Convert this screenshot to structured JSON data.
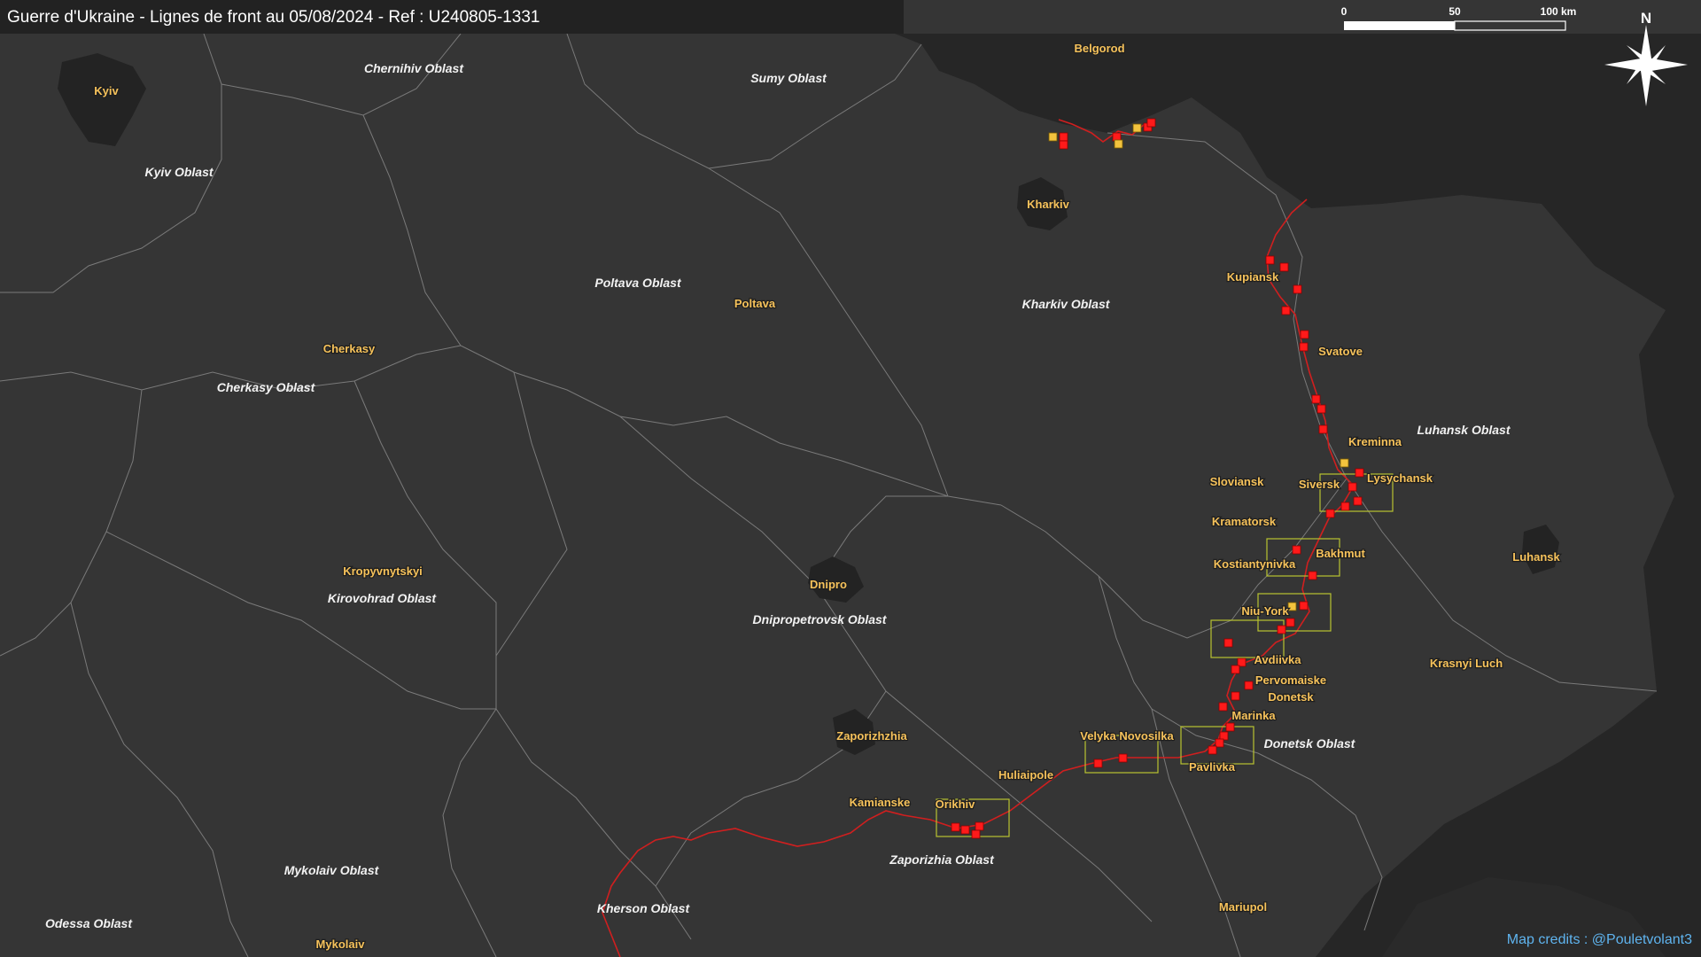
{
  "header": {
    "title": "Guerre d'Ukraine - Lignes de front au 05/08/2024 - Ref : U240805-1331"
  },
  "credits": "Map credits : @Pouletvolant3",
  "colors": {
    "ukraine_land": "#353535",
    "russia_land": "#262626",
    "oblast_border": "#7a7a7a",
    "front_line": "#d01f1f",
    "attack_marker": "#ff1a1a",
    "other_marker": "#f3c33e",
    "focus_box": "#b8c430",
    "city_label": "#f6c25b",
    "region_label": "#f2f2f2",
    "credits": "#5fb4ef"
  },
  "scale_bar": {
    "ticks": [
      "0",
      "50",
      "100 km"
    ]
  },
  "compass": {
    "label": "N",
    "icon": "compass-rose-icon"
  },
  "regions": [
    {
      "name": "Chernihiv Oblast"
    },
    {
      "name": "Sumy Oblast"
    },
    {
      "name": "Kyiv Oblast"
    },
    {
      "name": "Poltava Oblast"
    },
    {
      "name": "Kharkiv Oblast"
    },
    {
      "name": "Cherkasy Oblast"
    },
    {
      "name": "Luhansk Oblast"
    },
    {
      "name": "Kirovohrad Oblast"
    },
    {
      "name": "Dnipropetrovsk Oblast"
    },
    {
      "name": "Donetsk Oblast"
    },
    {
      "name": "Zaporizhia Oblast"
    },
    {
      "name": "Mykolaiv Oblast"
    },
    {
      "name": "Kherson Oblast"
    },
    {
      "name": "Odessa Oblast"
    }
  ],
  "cities": [
    {
      "name": "Kyiv"
    },
    {
      "name": "Belgorod"
    },
    {
      "name": "Kharkiv"
    },
    {
      "name": "Poltava"
    },
    {
      "name": "Kupiansk"
    },
    {
      "name": "Svatove"
    },
    {
      "name": "Cherkasy"
    },
    {
      "name": "Kreminna"
    },
    {
      "name": "Sloviansk"
    },
    {
      "name": "Siversk"
    },
    {
      "name": "Lysychansk"
    },
    {
      "name": "Kramatorsk"
    },
    {
      "name": "Kropyvnytskyi"
    },
    {
      "name": "Bakhmut"
    },
    {
      "name": "Kostiantynivka"
    },
    {
      "name": "Luhansk"
    },
    {
      "name": "Dnipro"
    },
    {
      "name": "Niu-York"
    },
    {
      "name": "Avdiivka"
    },
    {
      "name": "Pervomaiske"
    },
    {
      "name": "Krasnyi Luch"
    },
    {
      "name": "Donetsk"
    },
    {
      "name": "Marinka"
    },
    {
      "name": "Zaporizhzhia"
    },
    {
      "name": "Velyka Novosilka"
    },
    {
      "name": "Pavlivka"
    },
    {
      "name": "Huliaipole"
    },
    {
      "name": "Kamianske"
    },
    {
      "name": "Orikhiv"
    },
    {
      "name": "Mariupol"
    },
    {
      "name": "Mykolaiv"
    }
  ]
}
